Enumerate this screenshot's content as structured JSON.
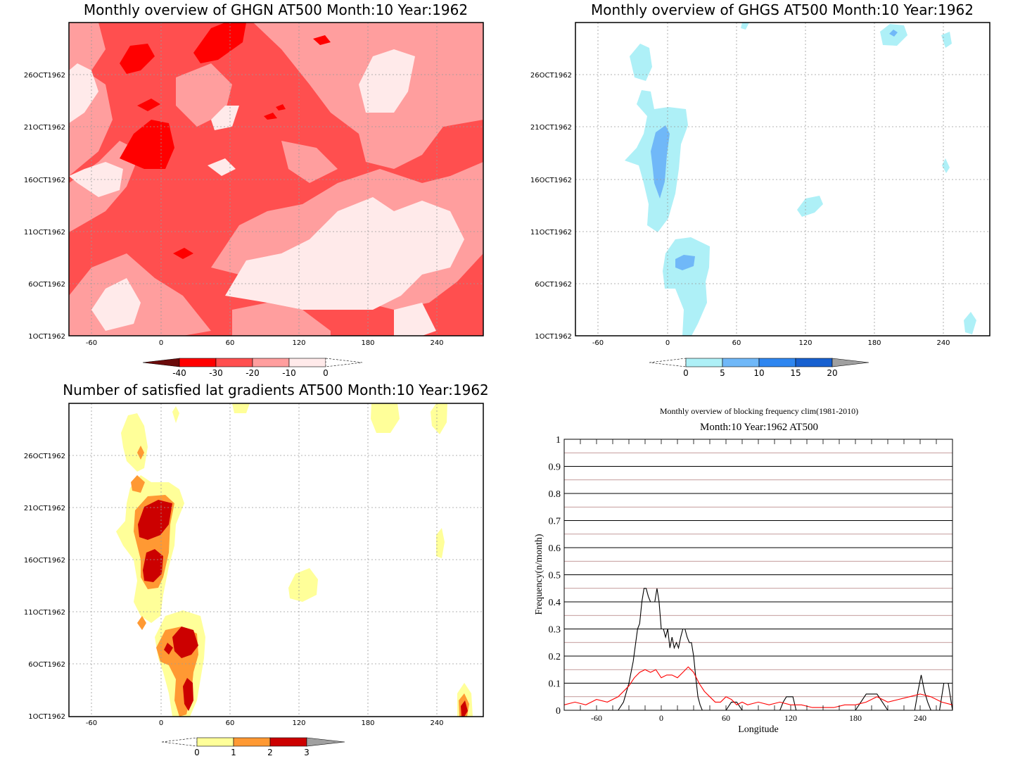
{
  "panels": {
    "ghgn": {
      "title": "Monthly overview of GHGN AT500 Month:10 Year:1962",
      "y_ticks": [
        "26OCT1962",
        "21OCT1962",
        "16OCT1962",
        "11OCT1962",
        "6OCT1962",
        "1OCT1962"
      ],
      "x_ticks": [
        "-60",
        "0",
        "60",
        "120",
        "180",
        "240"
      ],
      "colorbar": {
        "labels": [
          "-40",
          "-30",
          "-20",
          "-10",
          "0"
        ],
        "colors": [
          "#6b0b0b",
          "#ff0000",
          "#ff4f4f",
          "#ff9e9e",
          "#ffeaea"
        ]
      }
    },
    "ghgs": {
      "title": "Monthly overview of GHGS AT500 Month:10 Year:1962",
      "y_ticks": [
        "26OCT1962",
        "21OCT1962",
        "16OCT1962",
        "11OCT1962",
        "6OCT1962",
        "1OCT1962"
      ],
      "x_ticks": [
        "-60",
        "0",
        "60",
        "120",
        "180",
        "240"
      ],
      "colorbar": {
        "labels": [
          "0",
          "5",
          "10",
          "15",
          "20"
        ],
        "colors": [
          "#aef0f7",
          "#70b8f8",
          "#2e86f0",
          "#1760d0",
          "#a0a0a0"
        ]
      }
    },
    "nlat": {
      "title": "Number of satisfied lat gradients AT500 Month:10 Year:1962",
      "y_ticks": [
        "26OCT1962",
        "21OCT1962",
        "16OCT1962",
        "11OCT1962",
        "6OCT1962",
        "1OCT1962"
      ],
      "x_ticks": [
        "-60",
        "0",
        "60",
        "120",
        "180",
        "240"
      ],
      "colorbar": {
        "labels": [
          "0",
          "1",
          "2",
          "3"
        ],
        "colors": [
          "#ffff99",
          "#ff9933",
          "#cc0000",
          "#a0a0a0"
        ]
      }
    },
    "freq": {
      "title": "Monthly overview of blocking frequency clim(1981-2010)",
      "subtitle": "Month:10 Year:1962  AT500"
    }
  },
  "chart_data": [
    {
      "type": "heatmap",
      "title": "Monthly overview of GHGN AT500 Month:10 Year:1962",
      "x_ticks": [
        -60,
        0,
        60,
        120,
        180,
        240
      ],
      "y_ticks": [
        "26OCT1962",
        "21OCT1962",
        "16OCT1962",
        "11OCT1962",
        "6OCT1962",
        "1OCT1962"
      ],
      "levels": [
        -40,
        -30,
        -20,
        -10,
        0
      ]
    },
    {
      "type": "heatmap",
      "title": "Monthly overview of GHGS AT500 Month:10 Year:1962",
      "x_ticks": [
        -60,
        0,
        60,
        120,
        180,
        240
      ],
      "y_ticks": [
        "26OCT1962",
        "21OCT1962",
        "16OCT1962",
        "11OCT1962",
        "6OCT1962",
        "1OCT1962"
      ],
      "levels": [
        0,
        5,
        10,
        15,
        20
      ]
    },
    {
      "type": "heatmap",
      "title": "Number of satisfied lat gradients AT500 Month:10 Year:1962",
      "x_ticks": [
        -60,
        0,
        60,
        120,
        180,
        240
      ],
      "y_ticks": [
        "26OCT1962",
        "21OCT1962",
        "16OCT1962",
        "11OCT1962",
        "6OCT1962",
        "1OCT1962"
      ],
      "levels": [
        0,
        1,
        2,
        3
      ]
    },
    {
      "type": "line",
      "title": "Monthly overview of blocking frequency clim(1981-2010)",
      "subtitle": "Month:10 Year:1962  AT500",
      "xlabel": "Longitude",
      "ylabel": "Frequency(n/month)",
      "xlim": [
        -90,
        270
      ],
      "ylim": [
        0,
        1
      ],
      "x_ticks": [
        -60,
        0,
        60,
        120,
        180,
        240
      ],
      "y_ticks": [
        0,
        0.1,
        0.2,
        0.3,
        0.4,
        0.5,
        0.6,
        0.7,
        0.8,
        0.9,
        1
      ],
      "series": [
        {
          "color": "#000000",
          "x": [
            -90,
            -40,
            -35,
            -30,
            -26,
            -22,
            -20,
            -18,
            -16,
            -14,
            -12,
            -10,
            -8,
            -6,
            -4,
            -2,
            0,
            2,
            4,
            6,
            8,
            10,
            12,
            14,
            16,
            18,
            20,
            22,
            24,
            26,
            28,
            30,
            32,
            34,
            36,
            38,
            40,
            45,
            50,
            60,
            65,
            70,
            75,
            110,
            113,
            116,
            119,
            122,
            125,
            180,
            185,
            190,
            195,
            200,
            205,
            210,
            235,
            238,
            241,
            244,
            247,
            250,
            258,
            262,
            266,
            270
          ],
          "y": [
            0,
            0,
            0.03,
            0.1,
            0.18,
            0.3,
            0.32,
            0.4,
            0.45,
            0.45,
            0.42,
            0.4,
            0.4,
            0.4,
            0.45,
            0.4,
            0.3,
            0.3,
            0.27,
            0.3,
            0.23,
            0.27,
            0.23,
            0.25,
            0.23,
            0.27,
            0.3,
            0.3,
            0.27,
            0.25,
            0.25,
            0.2,
            0.12,
            0.05,
            0.02,
            0,
            0,
            0,
            0,
            0,
            0.03,
            0.03,
            0,
            0,
            0.03,
            0.05,
            0.05,
            0.05,
            0,
            0,
            0.03,
            0.06,
            0.06,
            0.06,
            0.03,
            0,
            0,
            0.07,
            0.13,
            0.07,
            0.03,
            0,
            0,
            0.1,
            0.1,
            0
          ]
        },
        {
          "color": "#ff0000",
          "x": [
            -90,
            -80,
            -70,
            -60,
            -50,
            -40,
            -30,
            -25,
            -20,
            -15,
            -10,
            -5,
            0,
            5,
            10,
            15,
            20,
            25,
            30,
            35,
            40,
            45,
            50,
            55,
            60,
            65,
            70,
            75,
            80,
            90,
            100,
            110,
            120,
            130,
            140,
            150,
            160,
            170,
            180,
            190,
            200,
            210,
            220,
            230,
            240,
            250,
            260,
            270
          ],
          "y": [
            0.02,
            0.03,
            0.02,
            0.04,
            0.03,
            0.05,
            0.09,
            0.12,
            0.14,
            0.15,
            0.14,
            0.15,
            0.12,
            0.13,
            0.13,
            0.12,
            0.14,
            0.16,
            0.14,
            0.1,
            0.07,
            0.05,
            0.03,
            0.03,
            0.05,
            0.04,
            0.02,
            0.03,
            0.02,
            0.03,
            0.02,
            0.03,
            0.02,
            0.02,
            0.01,
            0.01,
            0.01,
            0.02,
            0.02,
            0.03,
            0.05,
            0.03,
            0.04,
            0.05,
            0.06,
            0.05,
            0.03,
            0.02
          ]
        }
      ]
    }
  ]
}
